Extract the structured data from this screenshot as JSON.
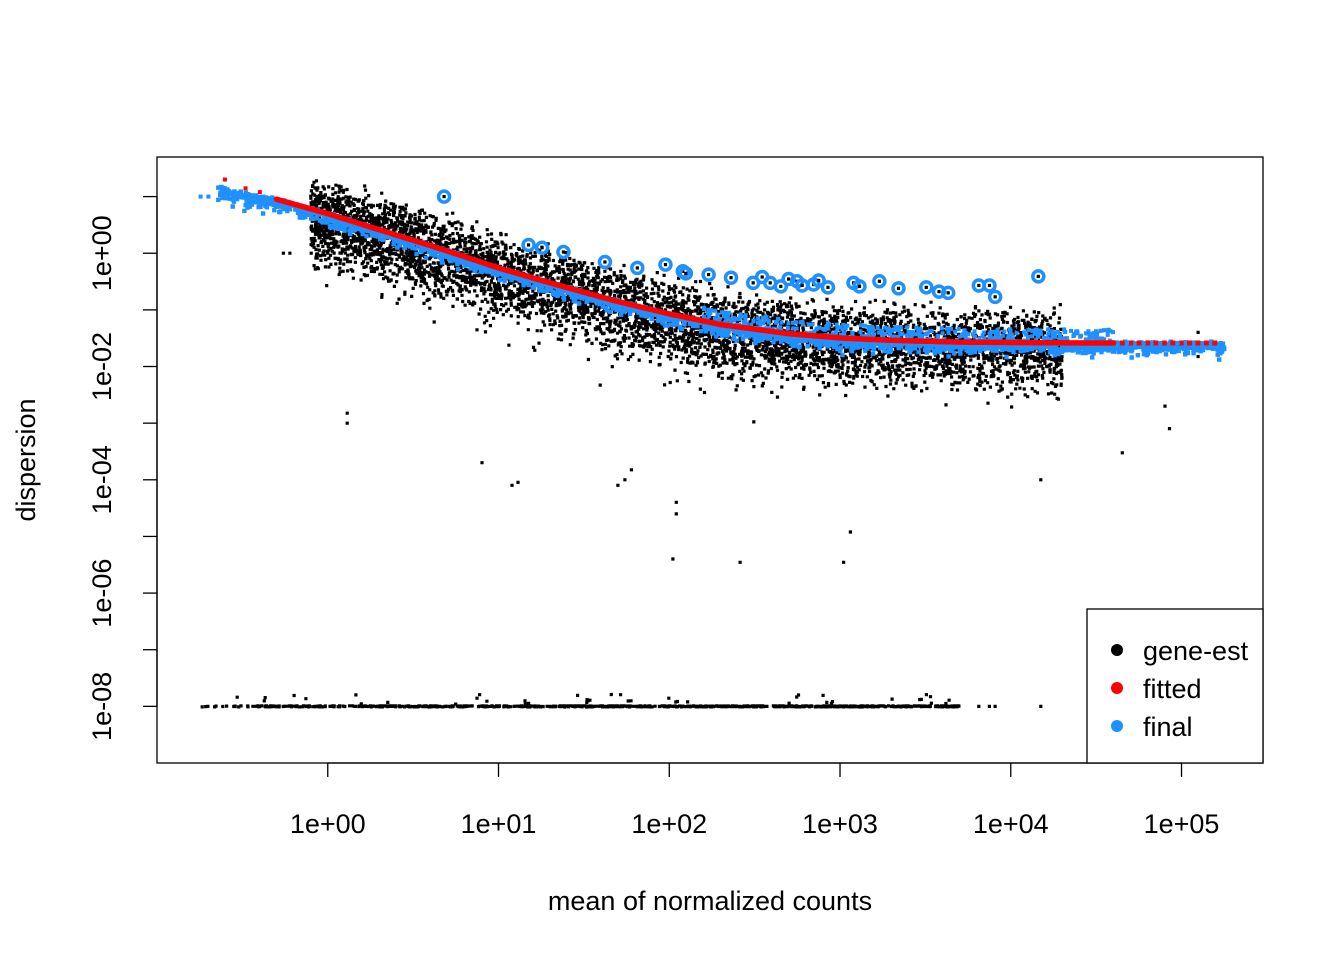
{
  "chart_data": {
    "type": "scatter",
    "title": "",
    "xlabel": "mean of normalized counts",
    "ylabel": "dispersion",
    "x_scale": "log10",
    "y_scale": "log10",
    "xlim": [
      0.1,
      300000
    ],
    "ylim": [
      1e-09,
      50
    ],
    "x_ticks": [
      {
        "value": 1,
        "label": "1e+00"
      },
      {
        "value": 10,
        "label": "1e+01"
      },
      {
        "value": 100,
        "label": "1e+02"
      },
      {
        "value": 1000,
        "label": "1e+03"
      },
      {
        "value": 10000,
        "label": "1e+04"
      },
      {
        "value": 100000,
        "label": "1e+05"
      }
    ],
    "y_ticks": [
      {
        "value": 1,
        "label": "1e+00"
      },
      {
        "value": 0.01,
        "label": "1e-02"
      },
      {
        "value": 0.0001,
        "label": "1e-04"
      },
      {
        "value": 1e-06,
        "label": "1e-06"
      },
      {
        "value": 1e-08,
        "label": "1e-08"
      }
    ],
    "y_minor_ticks": [
      10,
      0.1,
      0.001,
      1e-05,
      1e-07
    ],
    "grid": false,
    "legend": {
      "position": "bottom-right",
      "entries": [
        {
          "label": "gene-est",
          "color": "#000000"
        },
        {
          "label": "fitted",
          "color": "#ff0000"
        },
        {
          "label": "final",
          "color": "#1e90ff"
        }
      ]
    },
    "series": [
      {
        "name": "gene-est",
        "color": "#000000",
        "representative_points": [
          [
            1.3,
            0.0015
          ],
          [
            1.3,
            0.001
          ],
          [
            8,
            0.0002
          ],
          [
            12,
            8e-05
          ],
          [
            13,
            9e-05
          ],
          [
            50,
            8e-05
          ],
          [
            55,
            0.0001
          ],
          [
            60,
            0.00015
          ],
          [
            110,
            4e-05
          ],
          [
            110,
            2.5e-05
          ],
          [
            105,
            4e-06
          ],
          [
            260,
            3.5e-06
          ],
          [
            1050,
            3.5e-06
          ],
          [
            1150,
            1.2e-05
          ],
          [
            3,
            1.0
          ],
          [
            2,
            1.0
          ],
          [
            1.5,
            1.0
          ],
          [
            1.2,
            1.0
          ],
          [
            1.0,
            1.0
          ],
          [
            0.8,
            1.0
          ],
          [
            0.6,
            1.0
          ],
          [
            0.55,
            1.0
          ],
          [
            15000,
            0.0001
          ],
          [
            45000,
            0.0003
          ],
          [
            80000,
            0.002
          ],
          [
            85000,
            0.0008
          ],
          [
            125000,
            0.04
          ],
          [
            125000,
            0.015
          ]
        ],
        "floor_value": 1e-08,
        "floor_x_range": [
          0.18,
          5000
        ]
      },
      {
        "name": "fitted",
        "color": "#ff0000",
        "curve": [
          [
            0.2,
            16
          ],
          [
            0.3,
            12
          ],
          [
            0.5,
            9
          ],
          [
            1,
            5
          ],
          [
            2,
            2.6
          ],
          [
            5,
            1.1
          ],
          [
            10,
            0.55
          ],
          [
            20,
            0.3
          ],
          [
            50,
            0.14
          ],
          [
            100,
            0.085
          ],
          [
            200,
            0.055
          ],
          [
            500,
            0.038
          ],
          [
            1000,
            0.032
          ],
          [
            2000,
            0.029
          ],
          [
            5000,
            0.027
          ],
          [
            10000,
            0.0265
          ],
          [
            30000,
            0.026
          ],
          [
            100000,
            0.026
          ],
          [
            170000,
            0.026
          ]
        ]
      },
      {
        "name": "final",
        "color": "#1e90ff",
        "outliers": [
          [
            4.8,
            10.0
          ],
          [
            15,
            1.4
          ],
          [
            18,
            1.25
          ],
          [
            24,
            1.05
          ],
          [
            42,
            0.7
          ],
          [
            65,
            0.55
          ],
          [
            95,
            0.63
          ],
          [
            120,
            0.48
          ],
          [
            125,
            0.44
          ],
          [
            170,
            0.42
          ],
          [
            230,
            0.37
          ],
          [
            310,
            0.3
          ],
          [
            350,
            0.38
          ],
          [
            390,
            0.3
          ],
          [
            450,
            0.26
          ],
          [
            500,
            0.35
          ],
          [
            560,
            0.32
          ],
          [
            600,
            0.27
          ],
          [
            700,
            0.28
          ],
          [
            750,
            0.33
          ],
          [
            850,
            0.25
          ],
          [
            1200,
            0.3
          ],
          [
            1300,
            0.26
          ],
          [
            1700,
            0.32
          ],
          [
            2200,
            0.24
          ],
          [
            3200,
            0.25
          ],
          [
            3800,
            0.21
          ],
          [
            4300,
            0.2
          ],
          [
            6500,
            0.27
          ],
          [
            7500,
            0.27
          ],
          [
            8100,
            0.17
          ],
          [
            14500,
            0.39
          ]
        ]
      }
    ]
  }
}
